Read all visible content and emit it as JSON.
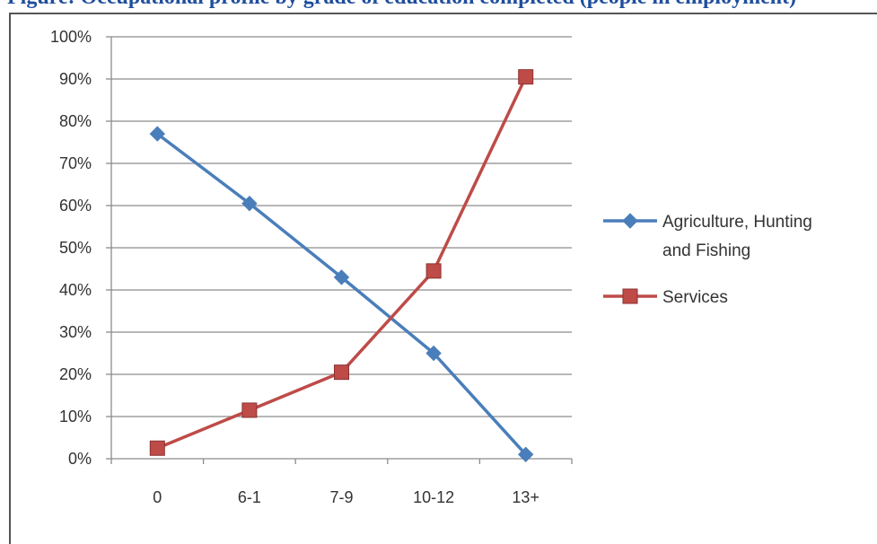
{
  "header": {
    "title": "Figure: Occupational profile by grade of education completed (people in employment)"
  },
  "chart_data": {
    "type": "line",
    "categories": [
      "0",
      "6-1",
      "7-9",
      "10-12",
      "13+"
    ],
    "ylim": [
      0,
      100
    ],
    "y_ticks": [
      "0%",
      "10%",
      "20%",
      "30%",
      "40%",
      "50%",
      "60%",
      "70%",
      "80%",
      "90%",
      "100%"
    ],
    "grid": true,
    "legend_position": "right",
    "series": [
      {
        "name_lines": [
          "Agriculture, Hunting",
          "and Fishing"
        ],
        "values": [
          77,
          60.5,
          43,
          25,
          1
        ],
        "color": "#4a7ebb",
        "marker": "diamond"
      },
      {
        "name_lines": [
          "Services"
        ],
        "values": [
          2.5,
          11.5,
          20.5,
          44.5,
          90.5
        ],
        "color": "#be4b48",
        "marker": "square"
      }
    ]
  }
}
